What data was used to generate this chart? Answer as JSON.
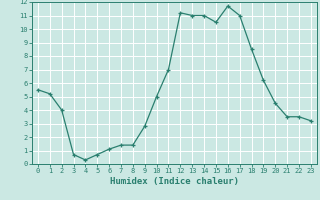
{
  "x": [
    0,
    1,
    2,
    3,
    4,
    5,
    6,
    7,
    8,
    9,
    10,
    11,
    12,
    13,
    14,
    15,
    16,
    17,
    18,
    19,
    20,
    21,
    22,
    23
  ],
  "y": [
    5.5,
    5.2,
    4.0,
    0.7,
    0.3,
    0.7,
    1.1,
    1.4,
    1.4,
    2.8,
    5.0,
    7.0,
    11.2,
    11.0,
    11.0,
    10.5,
    11.7,
    11.0,
    8.5,
    6.2,
    4.5,
    3.5,
    3.5,
    3.2
  ],
  "xlabel": "Humidex (Indice chaleur)",
  "ylim": [
    0,
    12
  ],
  "xlim": [
    -0.5,
    23.5
  ],
  "yticks": [
    0,
    1,
    2,
    3,
    4,
    5,
    6,
    7,
    8,
    9,
    10,
    11,
    12
  ],
  "xticks": [
    0,
    1,
    2,
    3,
    4,
    5,
    6,
    7,
    8,
    9,
    10,
    11,
    12,
    13,
    14,
    15,
    16,
    17,
    18,
    19,
    20,
    21,
    22,
    23
  ],
  "line_color": "#2a7f6f",
  "bg_color": "#cbe8e3",
  "grid_color": "#ffffff",
  "label_fontsize": 5.5,
  "tick_fontsize": 5.0,
  "xlabel_fontsize": 6.5
}
